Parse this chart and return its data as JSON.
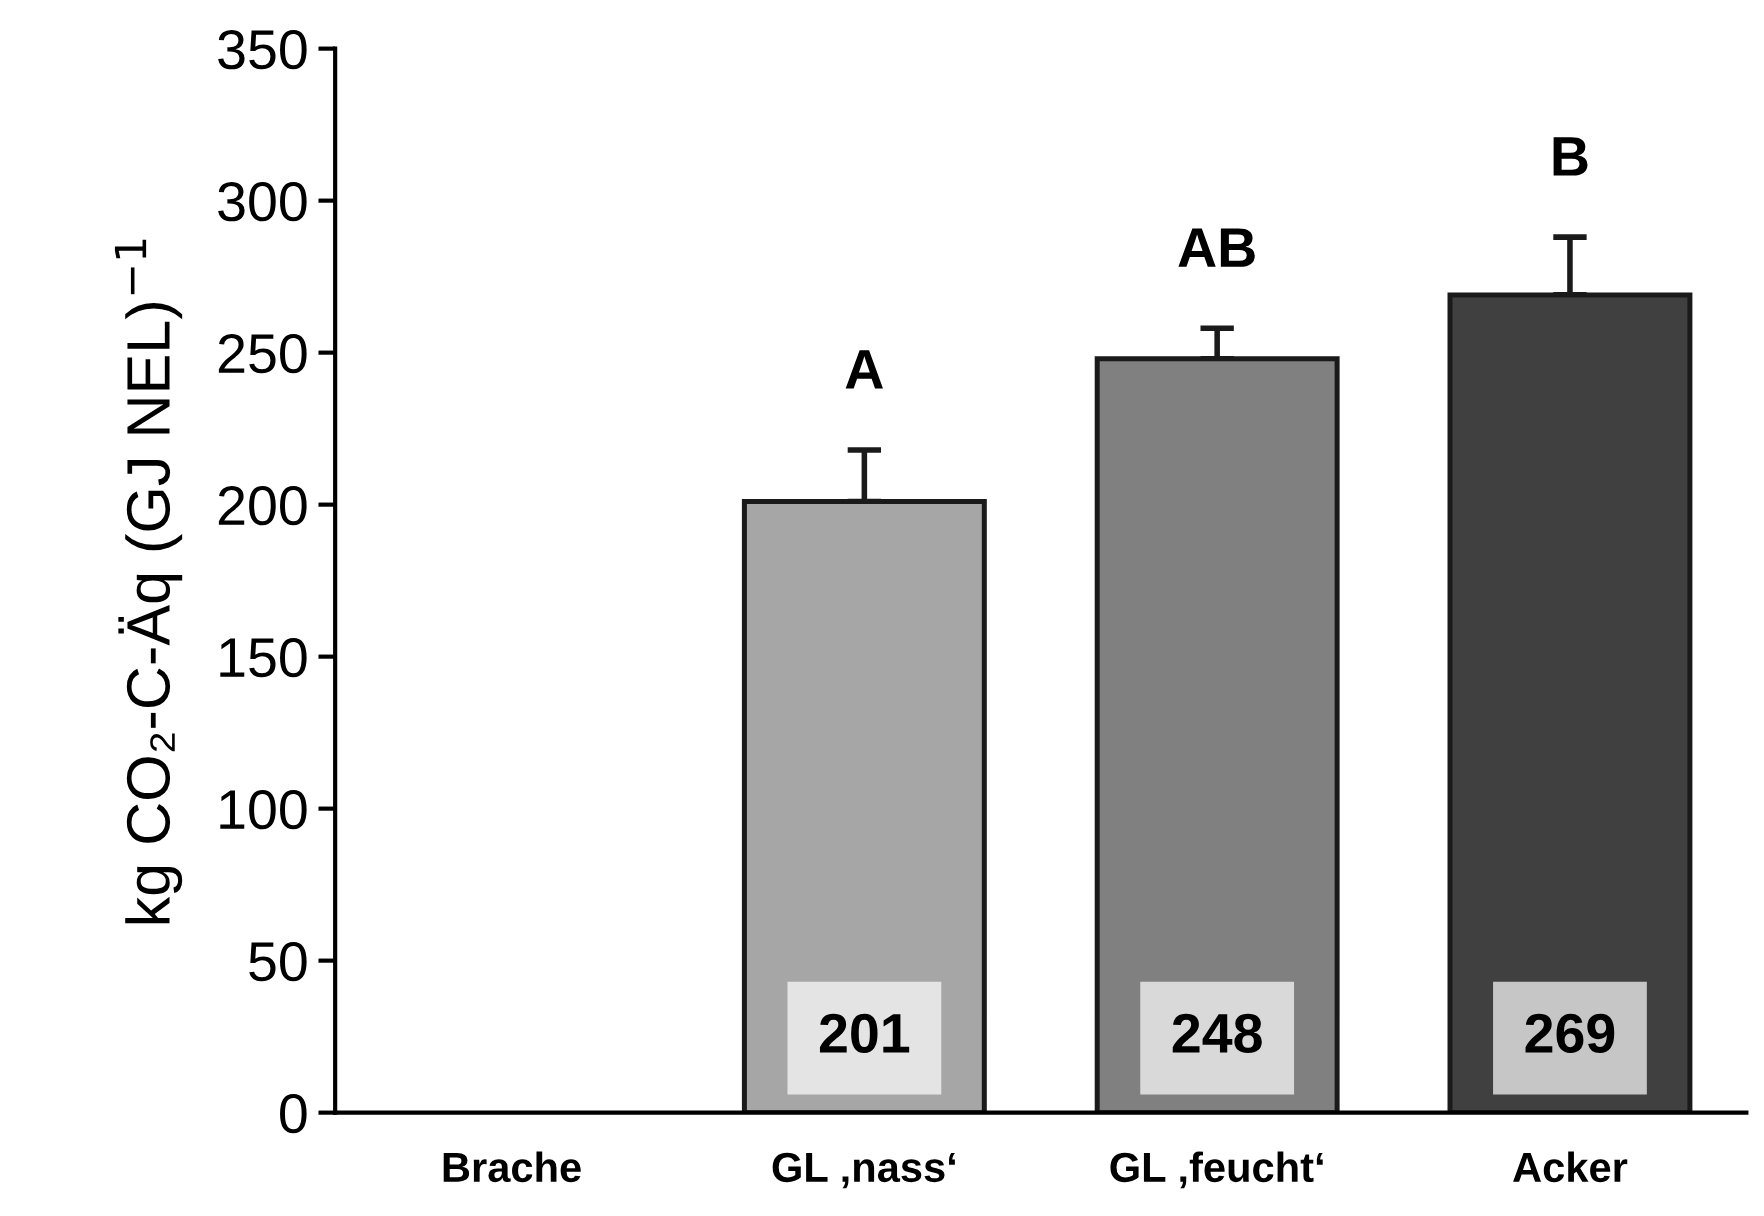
{
  "chart_data": {
    "type": "bar",
    "ylabel": "kg CO₂-C-Äq (GJ NEL)$^{−1}$",
    "categories": [
      "Brache",
      "GL ‚nass‘",
      "GL ‚feucht‘",
      "Acker"
    ],
    "values": [
      null,
      201,
      248,
      269
    ],
    "colors": [
      "#a6a6a6",
      "#a6a6a6",
      "#808080",
      "#404040"
    ],
    "errors": [
      null,
      17,
      10,
      19
    ],
    "value_labels": [
      null,
      "201",
      "248",
      "269"
    ],
    "annotations": [
      {
        "text": "A",
        "x": "GL ‚nass‘",
        "y": 218
      },
      {
        "text": "AB",
        "x": "GL ‚feucht‘",
        "y": 258
      },
      {
        "text": "B",
        "x": "Acker",
        "y": 288
      }
    ],
    "ylim": [
      0,
      350
    ],
    "yticks": [
      0,
      50,
      100,
      150,
      200,
      250,
      300,
      350
    ],
    "grid": false,
    "legend": false
  }
}
